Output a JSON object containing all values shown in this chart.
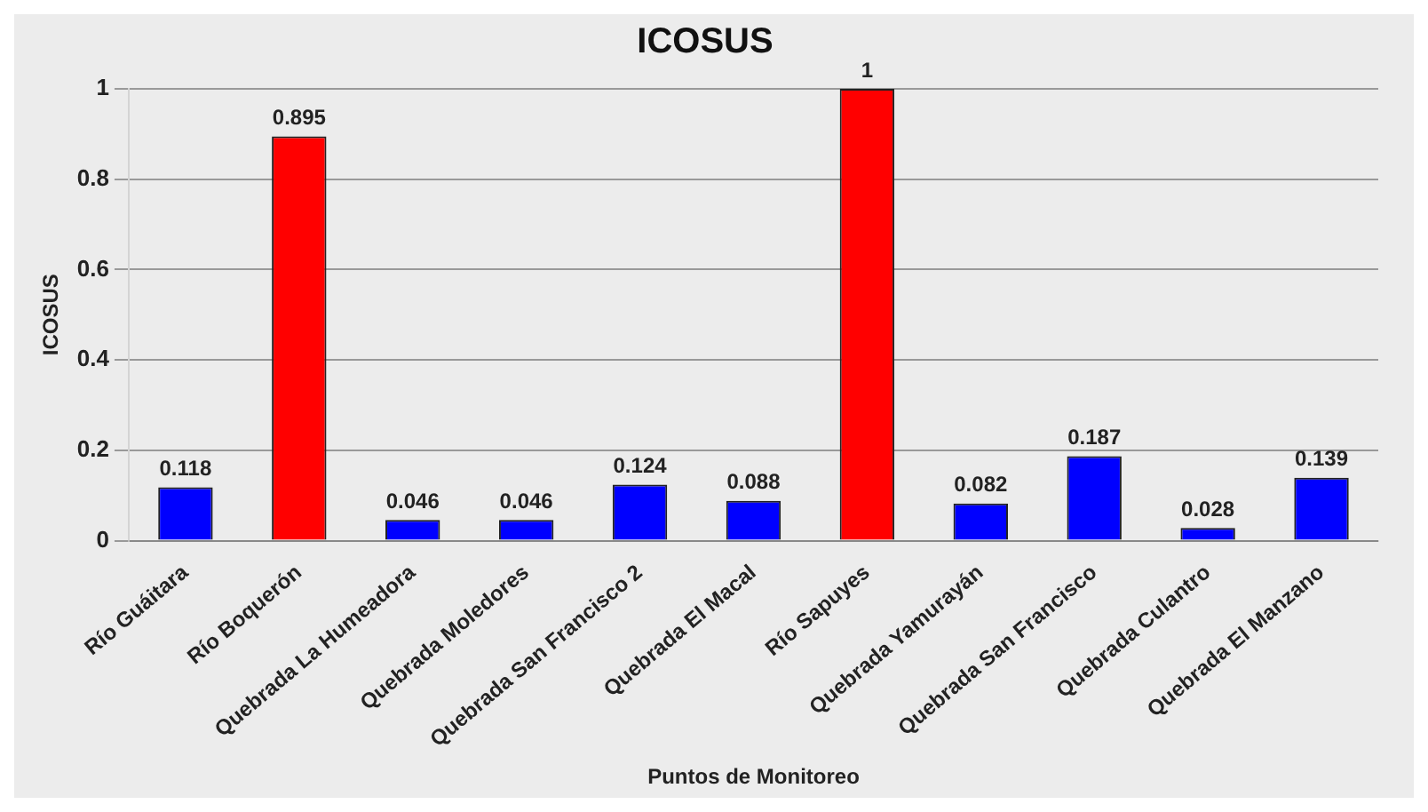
{
  "chart_data": {
    "type": "bar",
    "title": "ICOSUS",
    "xlabel": "Puntos de Monitoreo",
    "ylabel": "ICOSUS",
    "categories": [
      "Río Guáitara",
      "Río Boquerón",
      "Quebrada La Humeadora",
      "Quebrada Moledores",
      "Quebrada San Francisco 2",
      "Quebrada El Macal",
      "Río Sapuyes",
      "Quebrada Yamurayán",
      "Quebrada San Francisco",
      "Quebrada Culantro",
      "Quebrada El Manzano"
    ],
    "values": [
      0.118,
      0.895,
      0.046,
      0.046,
      0.124,
      0.088,
      1,
      0.082,
      0.187,
      0.028,
      0.139
    ],
    "colors": [
      "#0000ff",
      "#ff0000",
      "#0000ff",
      "#0000ff",
      "#0000ff",
      "#0000ff",
      "#ff0000",
      "#0000ff",
      "#0000ff",
      "#0000ff",
      "#0000ff"
    ],
    "ylim": [
      0,
      1
    ],
    "yticks": [
      0,
      0.2,
      0.4,
      0.6,
      0.8,
      1
    ],
    "grid": "y",
    "data_labels": true
  }
}
